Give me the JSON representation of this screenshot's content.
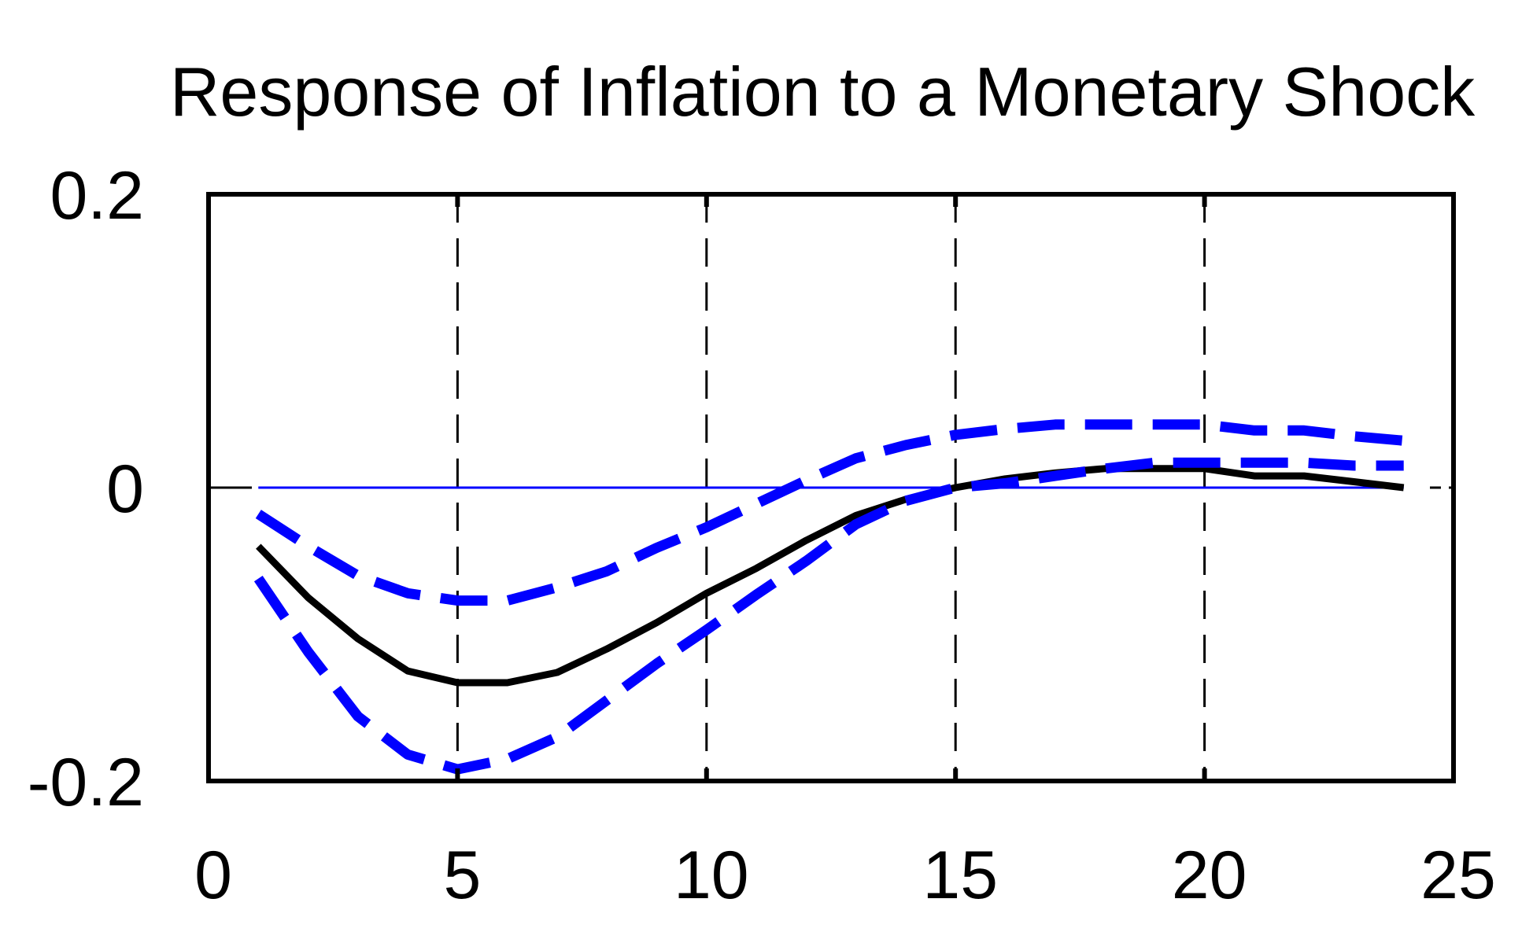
{
  "chart_data": {
    "type": "line",
    "title": "Response of Inflation to a Monetary Shock",
    "xlabel": "",
    "ylabel": "",
    "xlim": [
      0,
      25
    ],
    "ylim": [
      -0.2,
      0.2
    ],
    "x_ticks": [
      "0",
      "5",
      "10",
      "15",
      "20",
      "25"
    ],
    "y_ticks": [
      "0.2",
      "0",
      "-0.2"
    ],
    "vertical_gridlines_at": [
      5,
      10,
      15,
      20
    ],
    "zero_line_color": "#0000ff",
    "grid": "dashed vertical",
    "legend": "none",
    "x": [
      1,
      2,
      3,
      4,
      5,
      6,
      7,
      8,
      9,
      10,
      11,
      12,
      13,
      14,
      15,
      16,
      17,
      18,
      19,
      20,
      21,
      22,
      23,
      24
    ],
    "series": [
      {
        "role": "response",
        "color": "#000000",
        "style": "solid",
        "values": [
          -0.04,
          -0.075,
          -0.103,
          -0.125,
          -0.133,
          -0.133,
          -0.126,
          -0.11,
          -0.092,
          -0.072,
          -0.055,
          -0.036,
          -0.019,
          -0.008,
          0.0,
          0.006,
          0.01,
          0.013,
          0.013,
          0.013,
          0.008,
          0.008,
          0.004,
          0.0
        ]
      },
      {
        "role": "upper-band",
        "color": "#0000ff",
        "style": "dashed",
        "values": [
          -0.018,
          -0.04,
          -0.06,
          -0.072,
          -0.077,
          -0.077,
          -0.068,
          -0.057,
          -0.041,
          -0.027,
          -0.011,
          0.005,
          0.02,
          0.029,
          0.036,
          0.04,
          0.043,
          0.043,
          0.043,
          0.043,
          0.039,
          0.039,
          0.035,
          0.032
        ]
      },
      {
        "role": "lower-band",
        "color": "#0000ff",
        "style": "dashed",
        "values": [
          -0.062,
          -0.112,
          -0.156,
          -0.182,
          -0.192,
          -0.185,
          -0.17,
          -0.145,
          -0.12,
          -0.097,
          -0.073,
          -0.05,
          -0.025,
          -0.009,
          0.0,
          0.003,
          0.008,
          0.013,
          0.017,
          0.017,
          0.017,
          0.017,
          0.015,
          0.015
        ]
      }
    ]
  }
}
